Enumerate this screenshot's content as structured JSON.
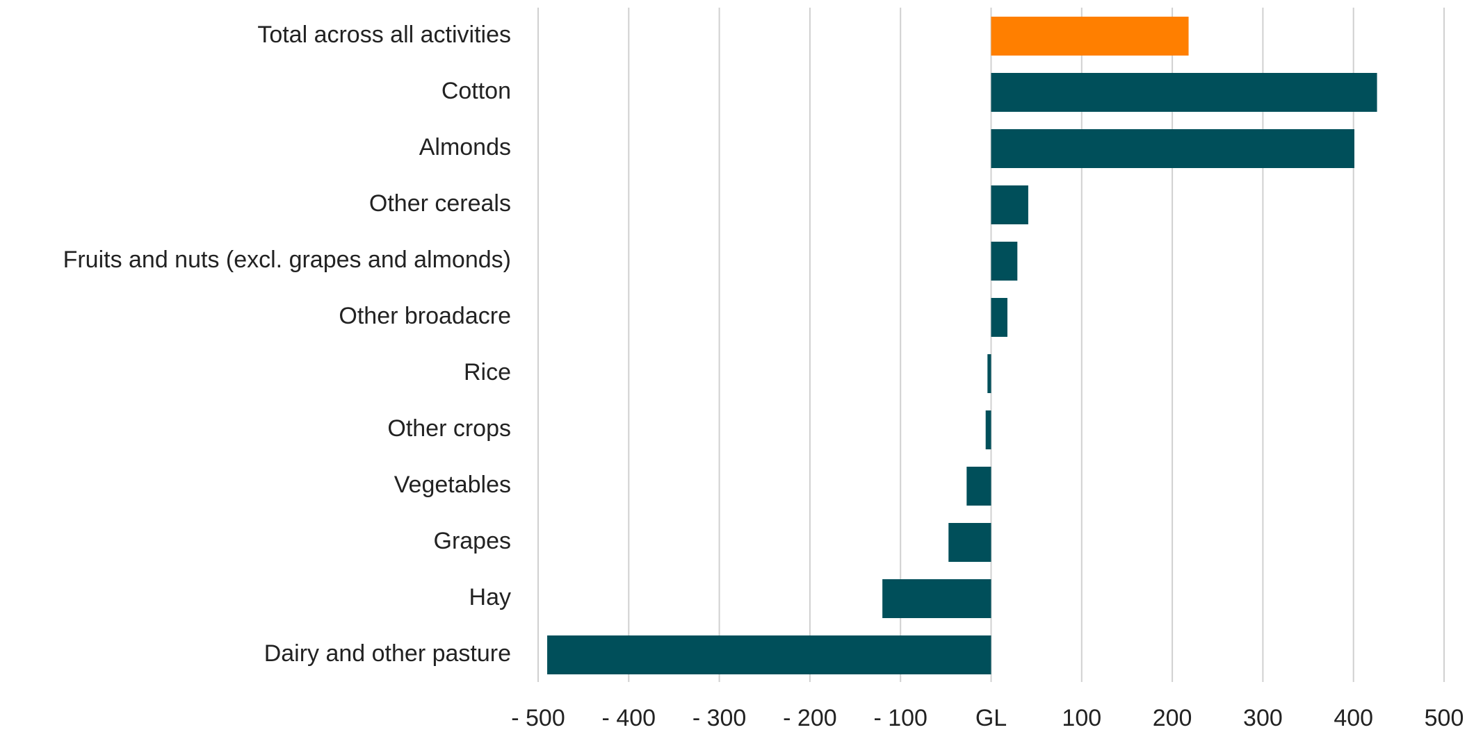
{
  "chart_data": {
    "type": "barh",
    "categories": [
      "Total across all activities",
      "Cotton",
      "Almonds",
      "Other cereals",
      "Fruits and nuts (excl. grapes and almonds)",
      "Other broadacre",
      "Rice",
      "Other crops",
      "Vegetables",
      "Grapes",
      "Hay",
      "Dairy and other pasture"
    ],
    "values": [
      218,
      426,
      401,
      41,
      29,
      18,
      -4,
      -6,
      -27,
      -47,
      -120,
      -490
    ],
    "colors": [
      "#ff7f00",
      "#004f5a",
      "#004f5a",
      "#004f5a",
      "#004f5a",
      "#004f5a",
      "#004f5a",
      "#004f5a",
      "#004f5a",
      "#004f5a",
      "#004f5a",
      "#004f5a"
    ],
    "xlim": [
      -500,
      500
    ],
    "xticks": [
      {
        "value": -500,
        "label": "- 500"
      },
      {
        "value": -400,
        "label": "- 400"
      },
      {
        "value": -300,
        "label": "- 300"
      },
      {
        "value": -200,
        "label": "- 200"
      },
      {
        "value": -100,
        "label": "- 100"
      },
      {
        "value": 0,
        "label": "GL"
      },
      100,
      200,
      300,
      400,
      500
    ],
    "grid": true
  }
}
